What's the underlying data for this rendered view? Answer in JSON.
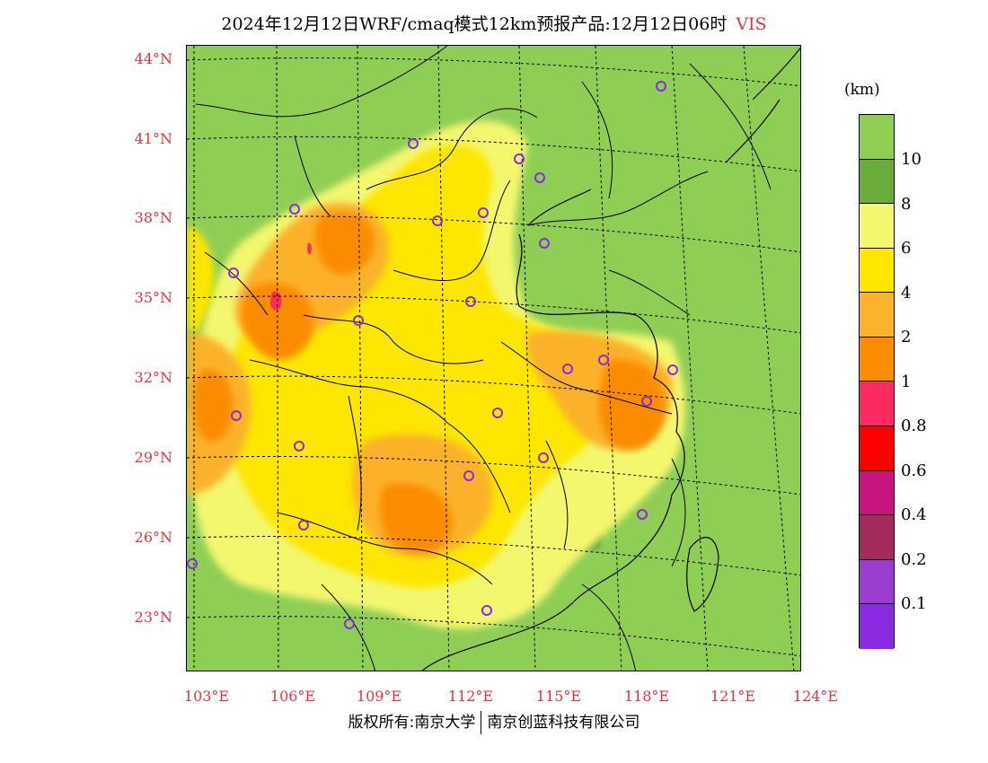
{
  "title": {
    "main": "2024年12月12日WRF/cmaq模式12km预报产品:12月12日06时",
    "variable": "VIS"
  },
  "legend": {
    "unit": "(km)",
    "labels": [
      "10",
      "8",
      "6",
      "4",
      "2",
      "1",
      "0.8",
      "0.6",
      "0.4",
      "0.2",
      "0.1"
    ],
    "colors": [
      "#8fce55",
      "#6aab3a",
      "#f3f76e",
      "#fde600",
      "#fbb22c",
      "#fb8c00",
      "#fb2b5f",
      "#ff0000",
      "#c8147e",
      "#a32a5c",
      "#9b3dd0",
      "#8a2be2"
    ]
  },
  "axes": {
    "lat_labels": [
      "44°N",
      "41°N",
      "38°N",
      "35°N",
      "32°N",
      "29°N",
      "26°N",
      "23°N"
    ],
    "lon_labels": [
      "103°E",
      "106°E",
      "109°E",
      "112°E",
      "115°E",
      "118°E",
      "121°E",
      "124°E"
    ]
  },
  "chart_data": {
    "type": "heatmap",
    "variable": "VIS",
    "unit": "km",
    "color_levels_km": [
      0.1,
      0.2,
      0.4,
      0.6,
      0.8,
      1,
      2,
      4,
      6,
      8,
      10
    ],
    "lat_ticks": [
      44,
      41,
      38,
      35,
      32,
      29,
      26,
      23
    ],
    "lon_ticks": [
      103,
      106,
      109,
      112,
      115,
      118,
      121,
      124
    ]
  },
  "footer": {
    "left": "版权所有:南京大学",
    "right": "南京创蓝科技有限公司"
  },
  "colors": {
    "axis_label": "#e8323c",
    "station_marker": "#8a2be2"
  }
}
